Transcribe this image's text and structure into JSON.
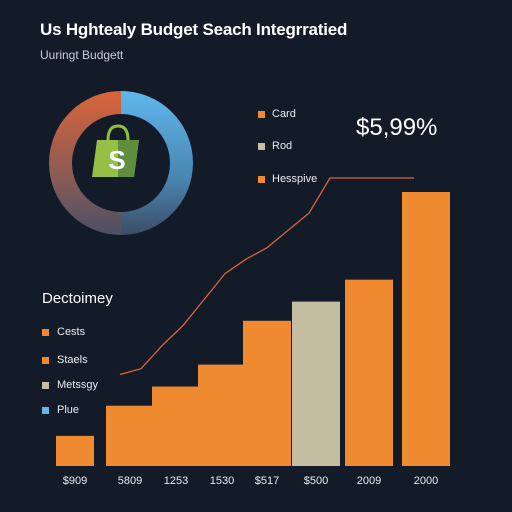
{
  "header": {
    "title": "Us Hghtealy Budget Seach Integrratied",
    "subtitle": "Uuringt Budgett"
  },
  "donut": {
    "icon": "shopping-bag-icon",
    "icon_letter": "S",
    "colors": [
      "#5fb7ec",
      "#d9653a"
    ]
  },
  "legend_top": [
    {
      "label": "Card",
      "color": "#f08a30"
    },
    {
      "label": "Rod",
      "color": "#c5bda1"
    },
    {
      "label": "Hesspive",
      "color": "#f08a30"
    }
  ],
  "big_value": "$5,99%",
  "section": {
    "title": "Dectoimey"
  },
  "legend_bottom": [
    {
      "label": "Cests",
      "color": "#f08a30"
    },
    {
      "label": "Staels",
      "color": "#f08a30"
    },
    {
      "label": "Metssgy",
      "color": "#c5bda1"
    },
    {
      "label": "Plue",
      "color": "#5fb7ec"
    }
  ],
  "chart_data": {
    "type": "bar",
    "categories": [
      "$909",
      "5809",
      "1253",
      "1530",
      "$517",
      "$500",
      "2009",
      "2000"
    ],
    "values": [
      11,
      22,
      29,
      37,
      53,
      60,
      68,
      100
    ],
    "colors": [
      "#f08a30",
      "#f08a30",
      "#f08a30",
      "#f08a30",
      "#f08a30",
      "#c5bda1",
      "#f08a30",
      "#f08a30"
    ],
    "line": [
      4,
      6,
      14,
      21,
      30,
      39,
      44,
      48,
      54,
      60,
      73,
      78,
      90,
      99,
      100
    ],
    "line_color": "#d9653a",
    "ylim": [
      0,
      100
    ],
    "grid": false
  }
}
